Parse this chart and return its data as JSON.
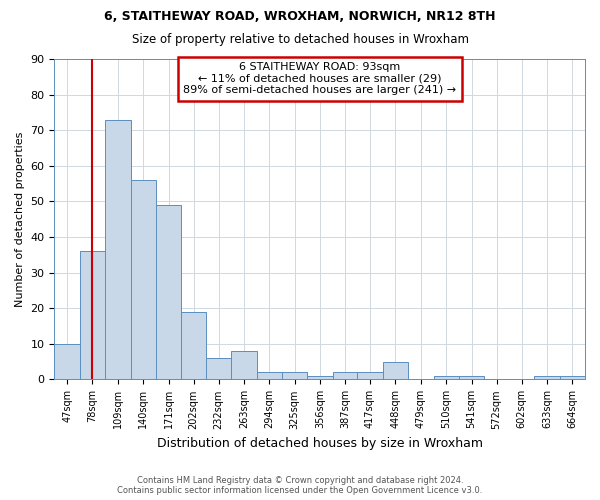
{
  "title": "6, STAITHEWAY ROAD, WROXHAM, NORWICH, NR12 8TH",
  "subtitle": "Size of property relative to detached houses in Wroxham",
  "xlabel": "Distribution of detached houses by size in Wroxham",
  "ylabel": "Number of detached properties",
  "bar_labels": [
    "47sqm",
    "78sqm",
    "109sqm",
    "140sqm",
    "171sqm",
    "202sqm",
    "232sqm",
    "263sqm",
    "294sqm",
    "325sqm",
    "356sqm",
    "387sqm",
    "417sqm",
    "448sqm",
    "479sqm",
    "510sqm",
    "541sqm",
    "572sqm",
    "602sqm",
    "633sqm",
    "664sqm"
  ],
  "bar_values": [
    10,
    36,
    73,
    56,
    49,
    19,
    6,
    8,
    2,
    2,
    1,
    2,
    2,
    5,
    0,
    1,
    1,
    0,
    0,
    1,
    1
  ],
  "bar_color": "#c8d8e8",
  "bar_edge_color": "#5a8fc0",
  "property_size": 93,
  "property_size_label": "6 STAITHEWAY ROAD: 93sqm",
  "annotation_line1": "← 11% of detached houses are smaller (29)",
  "annotation_line2": "89% of semi-detached houses are larger (241) →",
  "red_line_color": "#cc0000",
  "annotation_box_color": "#cc0000",
  "ylim": [
    0,
    90
  ],
  "bin_edges": [
    47,
    78,
    109,
    140,
    171,
    202,
    232,
    263,
    294,
    325,
    356,
    387,
    417,
    448,
    479,
    510,
    541,
    572,
    602,
    633,
    664,
    695
  ],
  "footer_line1": "Contains HM Land Registry data © Crown copyright and database right 2024.",
  "footer_line2": "Contains public sector information licensed under the Open Government Licence v3.0.",
  "background_color": "#ffffff",
  "grid_color": "#d0d8e0"
}
